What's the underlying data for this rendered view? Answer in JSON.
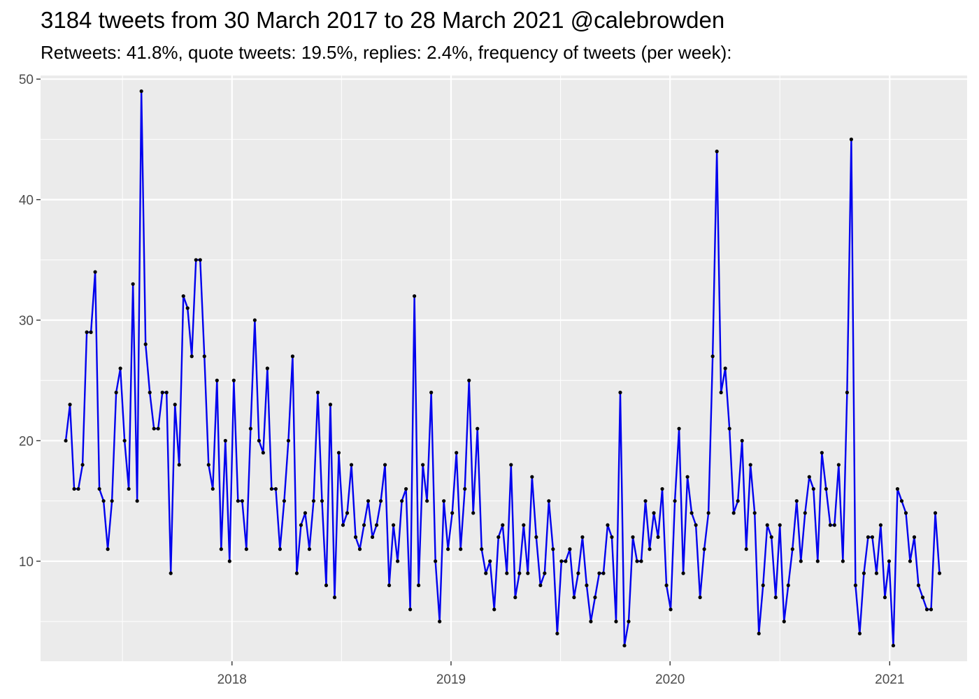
{
  "title": "3184 tweets from 30 March 2017 to 28 March 2021 @calebrowden",
  "subtitle": "Retweets: 41.8%, quote tweets: 19.5%, replies: 2.4%, frequency of tweets (per week):",
  "colors": {
    "line": "#0000ee",
    "point": "#000000",
    "panel": "#ebebeb",
    "grid": "#ffffff"
  },
  "chart_data": {
    "type": "line",
    "title": "3184 tweets from 30 March 2017 to 28 March 2021 @calebrowden",
    "subtitle": "Retweets: 41.8%, quote tweets: 19.5%, replies: 2.4%, frequency of tweets (per week):",
    "xlabel": "",
    "ylabel": "",
    "x_start_date": "2017-03-30",
    "x_interval": "week",
    "xlim": [
      "2017-02-16",
      "2021-05-10"
    ],
    "ylim": [
      1.7,
      50.3
    ],
    "x_ticks": [
      {
        "label": "2018",
        "date": "2018-01-01"
      },
      {
        "label": "2019",
        "date": "2019-01-01"
      },
      {
        "label": "2020",
        "date": "2020-01-01"
      },
      {
        "label": "2021",
        "date": "2021-01-01"
      }
    ],
    "y_ticks": [
      10,
      20,
      30,
      40,
      50
    ],
    "grid": true,
    "legend": "none",
    "series": [
      {
        "values": [
          20,
          23,
          16,
          16,
          18,
          29,
          29,
          34,
          16,
          15,
          11,
          15,
          24,
          26,
          20,
          16,
          33,
          15,
          49,
          28,
          24,
          21,
          21,
          24,
          24,
          9,
          23,
          18,
          32,
          31,
          27,
          35,
          35,
          27,
          18,
          16,
          25,
          11,
          20,
          10,
          25,
          15,
          15,
          11,
          21,
          30,
          20,
          19,
          26,
          16,
          16,
          11,
          15,
          20,
          27,
          9,
          13,
          14,
          11,
          15,
          24,
          15,
          8,
          23,
          7,
          19,
          13,
          14,
          18,
          12,
          11,
          13,
          15,
          12,
          13,
          15,
          18,
          8,
          13,
          10,
          15,
          16,
          6,
          32,
          8,
          18,
          15,
          24,
          10,
          5,
          15,
          11,
          14,
          19,
          11,
          16,
          25,
          14,
          21,
          11,
          9,
          10,
          6,
          12,
          13,
          9,
          18,
          7,
          9,
          13,
          9,
          17,
          12,
          8,
          9,
          15,
          11,
          4,
          10,
          10,
          11,
          7,
          9,
          12,
          8,
          5,
          7,
          9,
          9,
          13,
          12,
          5,
          24,
          3,
          5,
          12,
          10,
          10,
          15,
          11,
          14,
          12,
          16,
          8,
          6,
          15,
          21,
          9,
          17,
          14,
          13,
          7,
          11,
          14,
          27,
          44,
          24,
          26,
          21,
          14,
          15,
          20,
          11,
          18,
          14,
          4,
          8,
          13,
          12,
          7,
          13,
          5,
          8,
          11,
          15,
          10,
          14,
          17,
          16,
          10,
          19,
          16,
          13,
          13,
          18,
          10,
          24,
          45,
          8,
          4,
          9,
          12,
          12,
          9,
          13,
          7,
          10,
          3,
          16,
          15,
          14,
          10,
          12,
          8,
          7,
          6,
          6,
          14,
          9
        ]
      }
    ]
  }
}
